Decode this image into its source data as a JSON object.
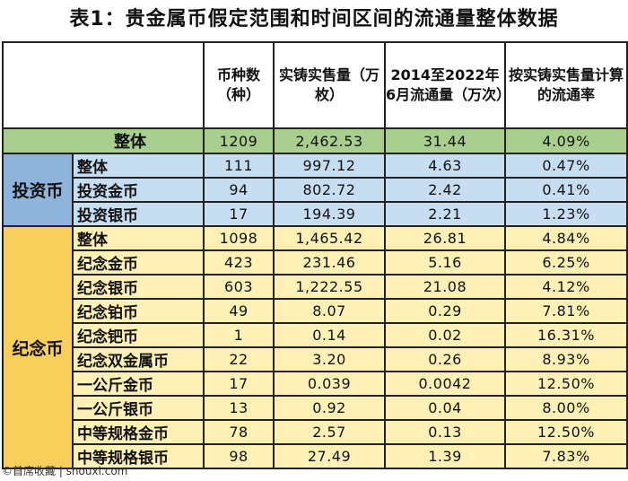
{
  "title": "表1：贵金属币假定范围和时间区间的流通量整体数据",
  "headers": {
    "col1": "币种数（种）",
    "col2": "实铸实售量（万枚）",
    "col3": "2014至2022年6月流通量（万次）",
    "col4": "按实铸实售量计算的流通率"
  },
  "total": {
    "label": "整体",
    "count": "1209",
    "minted": "2,462.53",
    "circ": "31.44",
    "rate": "4.09%"
  },
  "investment": {
    "group": "投资币",
    "rows": [
      {
        "label": "整体",
        "count": "111",
        "minted": "997.12",
        "circ": "4.63",
        "rate": "0.47%"
      },
      {
        "label": "投资金币",
        "count": "94",
        "minted": "802.72",
        "circ": "2.42",
        "rate": "0.41%"
      },
      {
        "label": "投资银币",
        "count": "17",
        "minted": "194.39",
        "circ": "2.21",
        "rate": "1.23%"
      }
    ]
  },
  "commemorative": {
    "group": "纪念币",
    "rows": [
      {
        "label": "整体",
        "count": "1098",
        "minted": "1,465.42",
        "circ": "26.81",
        "rate": "4.84%"
      },
      {
        "label": "纪念金币",
        "count": "423",
        "minted": "231.46",
        "circ": "5.16",
        "rate": "6.25%"
      },
      {
        "label": "纪念银币",
        "count": "603",
        "minted": "1,222.55",
        "circ": "21.08",
        "rate": "4.12%"
      },
      {
        "label": "纪念铂币",
        "count": "49",
        "minted": "8.07",
        "circ": "0.29",
        "rate": "7.81%"
      },
      {
        "label": "纪念钯币",
        "count": "1",
        "minted": "0.14",
        "circ": "0.02",
        "rate": "16.31%"
      },
      {
        "label": "纪念双金属币",
        "count": "22",
        "minted": "3.20",
        "circ": "0.26",
        "rate": "8.93%"
      },
      {
        "label": "一公斤金币",
        "count": "17",
        "minted": "0.039",
        "circ": "0.0042",
        "rate": "12.50%"
      },
      {
        "label": "一公斤银币",
        "count": "13",
        "minted": "0.92",
        "circ": "0.04",
        "rate": "8.00%"
      },
      {
        "label": "中等规格金币",
        "count": "78",
        "minted": "2.57",
        "circ": "0.13",
        "rate": "12.50%"
      },
      {
        "label": "中等规格银币",
        "count": "98",
        "minted": "27.49",
        "circ": "1.39",
        "rate": "7.83%"
      }
    ]
  },
  "footer": "©首席收藏 | shouxi.com"
}
